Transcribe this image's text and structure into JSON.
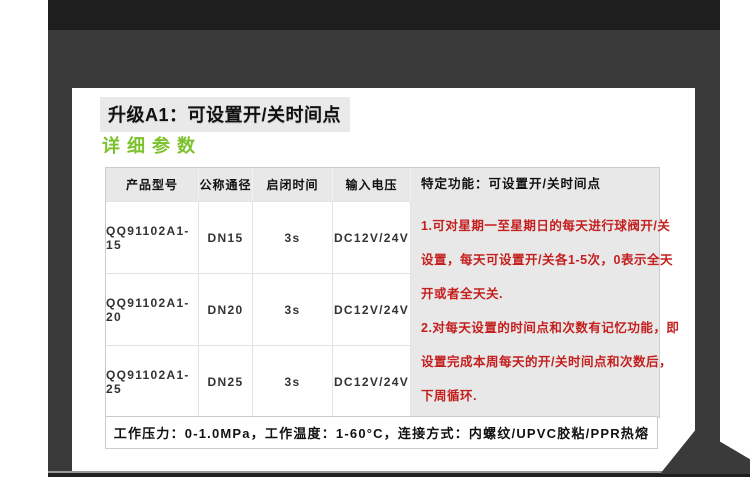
{
  "page": {
    "title": "升级A1：可设置开/关时间点",
    "subtitle": "详细参数"
  },
  "table": {
    "headers": {
      "model": "产品型号",
      "diameter": "公称通径",
      "open_close_time": "启闭时间",
      "input_voltage": "输入电压",
      "feature": "特定功能：可设置开/关时间点"
    },
    "rows": [
      {
        "model": "QQ91102A1-15",
        "diameter": "DN15",
        "time": "3s",
        "voltage": "DC12V/24V"
      },
      {
        "model": "QQ91102A1-20",
        "diameter": "DN20",
        "time": "3s",
        "voltage": "DC12V/24V"
      },
      {
        "model": "QQ91102A1-25",
        "diameter": "DN25",
        "time": "3s",
        "voltage": "DC12V/24V"
      }
    ],
    "feature_lines": [
      "1.可对星期一至星期日的每天进行球阀开/关",
      "设置，每天可设置开/关各1-5次，0表示全天",
      "开或者全天关.",
      "2.对每天设置的时间点和次数有记忆功能，即",
      "设置完成本周每天的开/关时间点和次数后，",
      "下周循环."
    ],
    "footer": "工作压力：0-1.0MPa，工作温度：1-60°C，连接方式：内螺纹/UPVC胶粘/PPR热熔"
  },
  "colors": {
    "accent_green": "#7cc22d",
    "feature_red": "#c41f1f",
    "frame_dark": "#3a3a3a",
    "band_dark": "#1e1e1e",
    "panel_gray": "#e8e8e8"
  }
}
